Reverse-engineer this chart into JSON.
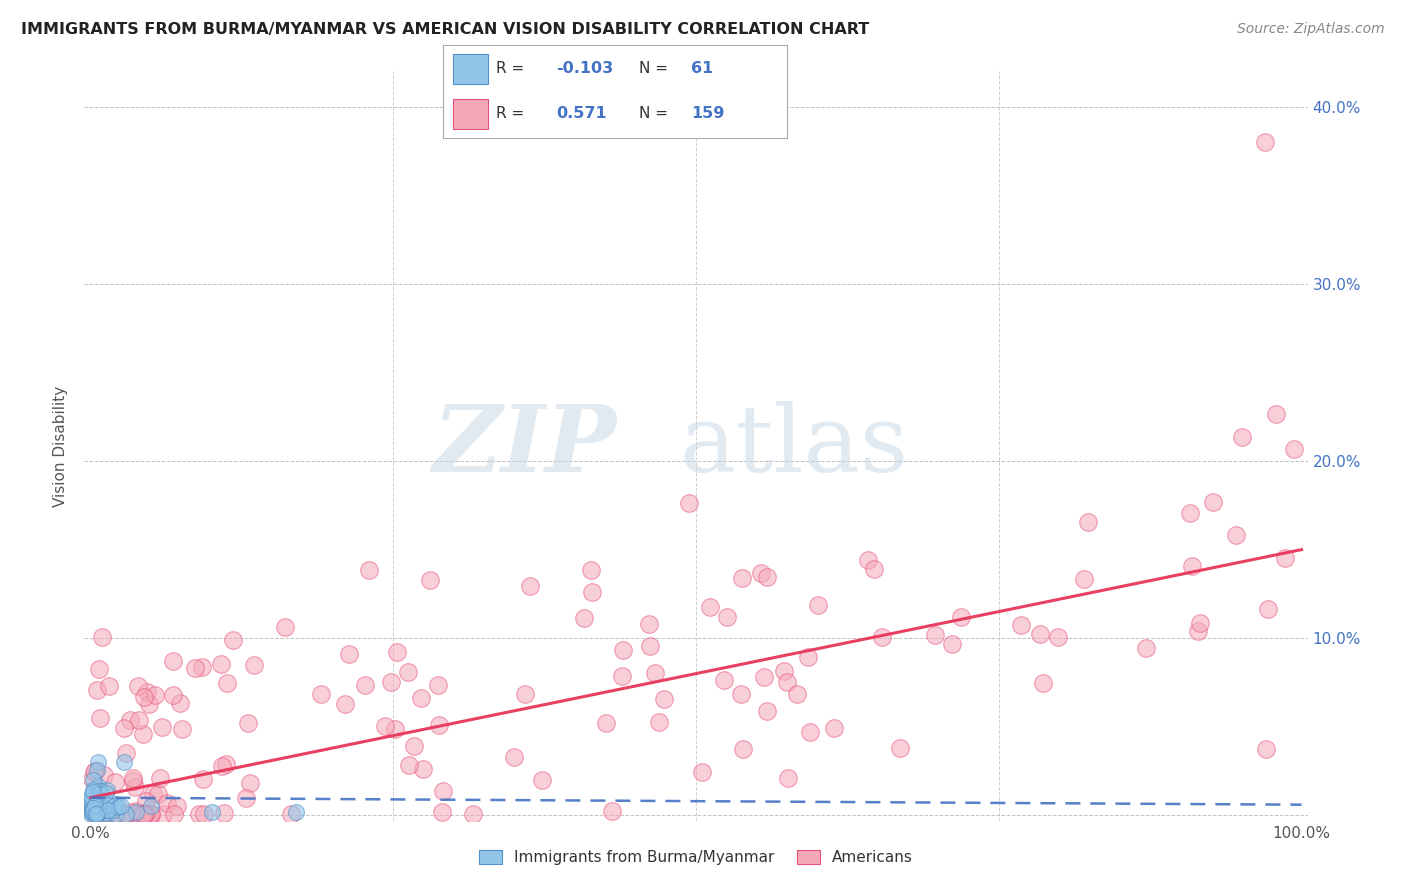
{
  "title": "IMMIGRANTS FROM BURMA/MYANMAR VS AMERICAN VISION DISABILITY CORRELATION CHART",
  "source": "Source: ZipAtlas.com",
  "ylabel": "Vision Disability",
  "blue_R": -0.103,
  "blue_N": 61,
  "pink_R": 0.571,
  "pink_N": 159,
  "legend_label_blue": "Immigrants from Burma/Myanmar",
  "legend_label_pink": "Americans",
  "blue_color": "#92C5E8",
  "pink_color": "#F4A9B8",
  "blue_line_color": "#4472C4",
  "pink_line_color": "#E8365A",
  "background_color": "#FFFFFF"
}
